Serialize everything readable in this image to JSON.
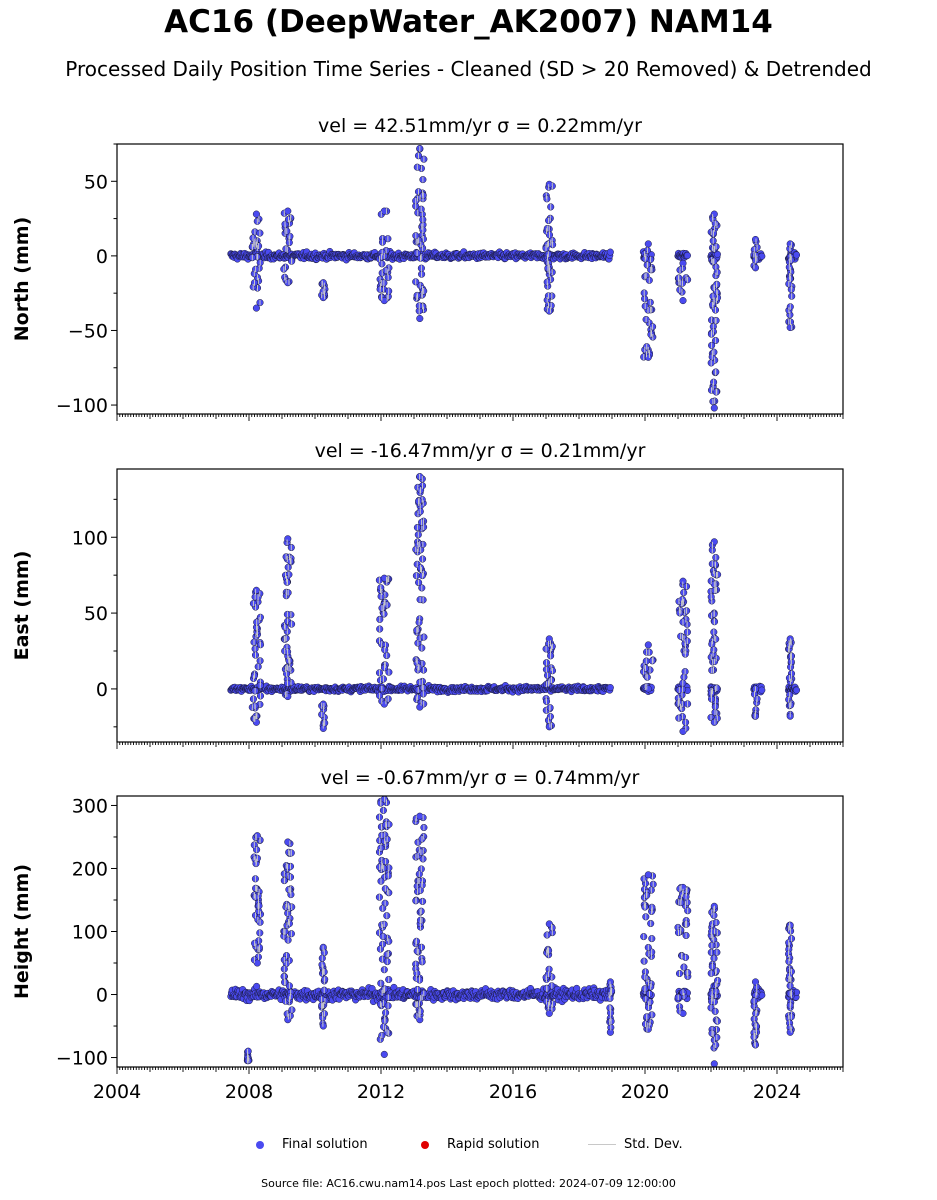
{
  "title": "AC16 (DeepWater_AK2007) NAM14",
  "subtitle": "Processed Daily Position Time Series - Cleaned (SD > 20 Removed) & Detrended",
  "footer": "Source file: AC16.cwu.nam14.pos  Last epoch plotted: 2024-07-09 12:00:00",
  "legend": [
    {
      "label": "Final solution",
      "color": "#4a4af0",
      "kind": "dot"
    },
    {
      "label": "Rapid solution",
      "color": "#e00000",
      "kind": "dot"
    },
    {
      "label": "Std. Dev.",
      "color": "#c8c8c8",
      "kind": "line"
    }
  ],
  "colors": {
    "final": "#4a4af0",
    "rapid": "#e00000",
    "stddev": "#c8c8c8",
    "edge": "#1a1a3a"
  },
  "chart_data": [
    {
      "type": "scatter",
      "component": "North",
      "title": "vel = 42.51mm/yr   σ = 0.22mm/yr",
      "ylabel": "North (mm)",
      "xlim": [
        2004.0,
        2026.0
      ],
      "ylim": [
        -106,
        75
      ],
      "yticks": [
        -100,
        -50,
        0,
        50
      ],
      "xticks": [
        2004,
        2008,
        2012,
        2016,
        2020,
        2024
      ],
      "xticklabels_shown": false,
      "noise": 2.5,
      "segments": [
        {
          "x": [
            2007.45,
            2018.95
          ],
          "step": 0.02
        },
        {
          "x": [
            2019.95,
            2020.2
          ],
          "step": 0.015
        },
        {
          "x": [
            2021.0,
            2021.3
          ],
          "step": 0.015
        },
        {
          "x": [
            2022.0,
            2022.2
          ],
          "step": 0.015
        },
        {
          "x": [
            2023.3,
            2023.55
          ],
          "step": 0.015
        },
        {
          "x": [
            2024.35,
            2024.6
          ],
          "step": 0.015
        }
      ],
      "excursions": [
        {
          "x": [
            2008.1,
            2008.35
          ],
          "y": [
            -35,
            28
          ]
        },
        {
          "x": [
            2009.05,
            2009.3
          ],
          "y": [
            -18,
            30
          ]
        },
        {
          "x": [
            2010.2,
            2010.3
          ],
          "y": [
            -28,
            -18
          ]
        },
        {
          "x": [
            2011.95,
            2012.25
          ],
          "y": [
            -30,
            30
          ]
        },
        {
          "x": [
            2013.05,
            2013.3
          ],
          "y": [
            -42,
            72
          ]
        },
        {
          "x": [
            2017.0,
            2017.2
          ],
          "y": [
            -37,
            48
          ]
        },
        {
          "x": [
            2019.95,
            2020.25
          ],
          "y": [
            -68,
            8
          ]
        },
        {
          "x": [
            2021.0,
            2021.3
          ],
          "y": [
            -30,
            -5
          ]
        },
        {
          "x": [
            2022.0,
            2022.2
          ],
          "y": [
            -102,
            28
          ]
        },
        {
          "x": [
            2023.3,
            2023.4
          ],
          "y": [
            -8,
            11
          ]
        },
        {
          "x": [
            2024.35,
            2024.45
          ],
          "y": [
            -48,
            8
          ]
        }
      ]
    },
    {
      "type": "scatter",
      "component": "East",
      "title": "vel = -16.47mm/yr   σ = 0.21mm/yr",
      "ylabel": "East (mm)",
      "xlim": [
        2004.0,
        2026.0
      ],
      "ylim": [
        -35,
        145
      ],
      "yticks": [
        0,
        50,
        100
      ],
      "xticks": [
        2004,
        2008,
        2012,
        2016,
        2020,
        2024
      ],
      "xticklabels_shown": false,
      "noise": 2.0,
      "segments": [
        {
          "x": [
            2007.45,
            2018.95
          ],
          "step": 0.02
        },
        {
          "x": [
            2019.95,
            2020.2
          ],
          "step": 0.015
        },
        {
          "x": [
            2021.0,
            2021.3
          ],
          "step": 0.015
        },
        {
          "x": [
            2022.0,
            2022.2
          ],
          "step": 0.015
        },
        {
          "x": [
            2023.3,
            2023.55
          ],
          "step": 0.015
        },
        {
          "x": [
            2024.35,
            2024.6
          ],
          "step": 0.015
        }
      ],
      "excursions": [
        {
          "x": [
            2008.1,
            2008.35
          ],
          "y": [
            -22,
            65
          ]
        },
        {
          "x": [
            2009.05,
            2009.3
          ],
          "y": [
            -5,
            99
          ]
        },
        {
          "x": [
            2010.2,
            2010.3
          ],
          "y": [
            -26,
            -10
          ]
        },
        {
          "x": [
            2011.95,
            2012.25
          ],
          "y": [
            -10,
            73
          ]
        },
        {
          "x": [
            2013.05,
            2013.3
          ],
          "y": [
            -12,
            140
          ]
        },
        {
          "x": [
            2017.0,
            2017.2
          ],
          "y": [
            -25,
            33
          ]
        },
        {
          "x": [
            2019.95,
            2020.25
          ],
          "y": [
            0,
            29
          ]
        },
        {
          "x": [
            2021.0,
            2021.3
          ],
          "y": [
            -28,
            71
          ]
        },
        {
          "x": [
            2022.0,
            2022.2
          ],
          "y": [
            -22,
            97
          ]
        },
        {
          "x": [
            2023.3,
            2023.4
          ],
          "y": [
            -18,
            0
          ]
        },
        {
          "x": [
            2024.35,
            2024.45
          ],
          "y": [
            -18,
            33
          ]
        }
      ]
    },
    {
      "type": "scatter",
      "component": "Height",
      "title": "vel = -0.67mm/yr   σ = 0.74mm/yr",
      "ylabel": "Height (mm)",
      "xlim": [
        2004.0,
        2026.0
      ],
      "ylim": [
        -115,
        315
      ],
      "yticks": [
        -100,
        0,
        100,
        200,
        300
      ],
      "xticks": [
        2004,
        2008,
        2012,
        2016,
        2020,
        2024
      ],
      "xticklabels": [
        "2004",
        "2008",
        "2012",
        "2016",
        "2020",
        "2024"
      ],
      "xticklabels_shown": true,
      "noise": 10,
      "segments": [
        {
          "x": [
            2007.45,
            2018.95
          ],
          "step": 0.02
        },
        {
          "x": [
            2019.95,
            2020.2
          ],
          "step": 0.015
        },
        {
          "x": [
            2021.0,
            2021.3
          ],
          "step": 0.015
        },
        {
          "x": [
            2022.0,
            2022.2
          ],
          "step": 0.015
        },
        {
          "x": [
            2023.3,
            2023.55
          ],
          "step": 0.015
        },
        {
          "x": [
            2024.35,
            2024.6
          ],
          "step": 0.015
        }
      ],
      "excursions": [
        {
          "x": [
            2007.95,
            2008.0
          ],
          "y": [
            -105,
            -90
          ]
        },
        {
          "x": [
            2008.15,
            2008.35
          ],
          "y": [
            50,
            252
          ]
        },
        {
          "x": [
            2009.05,
            2009.3
          ],
          "y": [
            -40,
            242
          ]
        },
        {
          "x": [
            2010.2,
            2010.3
          ],
          "y": [
            -50,
            75
          ]
        },
        {
          "x": [
            2011.95,
            2012.25
          ],
          "y": [
            -95,
            310
          ]
        },
        {
          "x": [
            2013.05,
            2013.3
          ],
          "y": [
            -40,
            283
          ]
        },
        {
          "x": [
            2017.0,
            2017.2
          ],
          "y": [
            -30,
            112
          ]
        },
        {
          "x": [
            2018.9,
            2019.0
          ],
          "y": [
            -60,
            20
          ]
        },
        {
          "x": [
            2019.95,
            2020.25
          ],
          "y": [
            -55,
            190
          ]
        },
        {
          "x": [
            2021.0,
            2021.3
          ],
          "y": [
            -30,
            170
          ]
        },
        {
          "x": [
            2022.0,
            2022.2
          ],
          "y": [
            -110,
            140
          ]
        },
        {
          "x": [
            2023.3,
            2023.4
          ],
          "y": [
            -80,
            20
          ]
        },
        {
          "x": [
            2024.35,
            2024.45
          ],
          "y": [
            -60,
            110
          ]
        }
      ]
    }
  ]
}
